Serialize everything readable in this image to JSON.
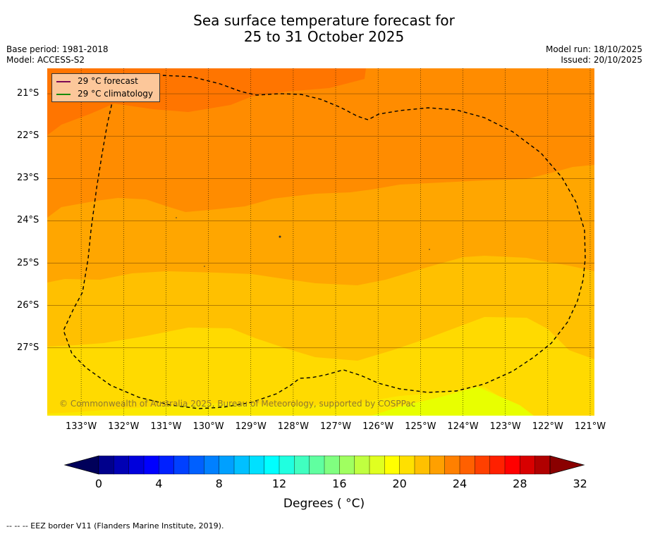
{
  "title": {
    "line1": "Sea surface temperature forecast for",
    "line2": "25 to 31 October 2025"
  },
  "meta": {
    "base_period": "Base period: 1981-2018",
    "model": "Model: ACCESS-S2",
    "model_run": "Model run: 18/10/2025",
    "issued": "Issued: 20/10/2025"
  },
  "map": {
    "lat_labels": [
      "21°S",
      "22°S",
      "23°S",
      "24°S",
      "25°S",
      "26°S",
      "27°S"
    ],
    "lon_labels": [
      "133°W",
      "132°W",
      "131°W",
      "130°W",
      "129°W",
      "128°W",
      "127°W",
      "126°W",
      "125°W",
      "124°W",
      "123°W",
      "122°W",
      "121°W"
    ],
    "lon_range": [
      -133.8,
      -120.9
    ],
    "lat_range": [
      -20.4,
      -28.6
    ],
    "band_colors": [
      "#ff7500",
      "#ff8c00",
      "#ffa600",
      "#ffc000",
      "#ffda00",
      "#fbe800",
      "#e8ff00"
    ],
    "copyright": "© Commonwealth of Australia 2025, Bureau of Meteorology, supported by COSPPac"
  },
  "legend": {
    "forecast_label": "29 °C  forecast",
    "forecast_color": "#7b0a55",
    "climatology_label": "29 °C  climatology",
    "climatology_color": "#178a0a"
  },
  "colorbar": {
    "min": 0,
    "max": 32,
    "step": 1,
    "ticks": [
      "0",
      "4",
      "8",
      "12",
      "16",
      "20",
      "24",
      "28",
      "32"
    ],
    "colors": [
      "#00008c",
      "#0000b4",
      "#0000dc",
      "#0000ff",
      "#0020ff",
      "#0040ff",
      "#0060ff",
      "#0080ff",
      "#00a0ff",
      "#00c0ff",
      "#00e0ff",
      "#00ffff",
      "#20ffe0",
      "#40ffc0",
      "#60ffa0",
      "#80ff80",
      "#a0ff60",
      "#c0ff40",
      "#e0ff20",
      "#ffff00",
      "#ffe000",
      "#ffc000",
      "#ffa000",
      "#ff8000",
      "#ff6000",
      "#ff4000",
      "#ff2000",
      "#ff0000",
      "#d80000",
      "#b00000"
    ],
    "under_color": "#00005a",
    "over_color": "#8a0000",
    "label": "Degrees ( °C)"
  },
  "footer": "--  --  -- EEZ border V11 (Flanders Marine Institute, 2019)."
}
